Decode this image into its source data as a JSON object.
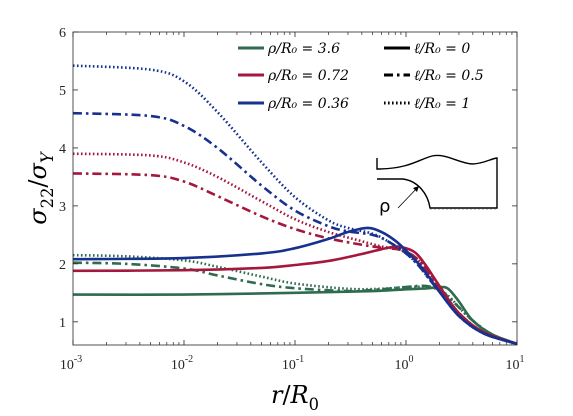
{
  "chart_data": {
    "type": "line",
    "xscale": "log",
    "xlim": [
      0.001,
      10
    ],
    "ylim": [
      0.6,
      6
    ],
    "grid": false,
    "legend_placement": "top-right",
    "x_ticks": [
      {
        "value": 0.001,
        "base": "10",
        "exp": "-3"
      },
      {
        "value": 0.01,
        "base": "10",
        "exp": "-2"
      },
      {
        "value": 0.1,
        "base": "10",
        "exp": "-1"
      },
      {
        "value": 1,
        "base": "10",
        "exp": "0"
      },
      {
        "value": 10,
        "base": "10",
        "exp": "1"
      }
    ],
    "y_ticks": [
      1,
      2,
      3,
      4,
      5,
      6
    ],
    "xlabel_parts": [
      {
        "t": "r",
        "i": true
      },
      {
        "t": "/",
        "i": false
      },
      {
        "t": "R",
        "i": true
      },
      {
        "t": "0",
        "i": false,
        "sub": true
      }
    ],
    "ylabel_parts": [
      {
        "t": "σ",
        "i": true
      },
      {
        "t": "22",
        "i": false,
        "sub": true
      },
      {
        "t": "/",
        "i": false
      },
      {
        "t": "σ",
        "i": true
      },
      {
        "t": "Y",
        "i": true,
        "sub": true
      }
    ],
    "colors": {
      "green": "#2e6b4f",
      "red": "#a3183c",
      "blue": "#17318f"
    },
    "legend_colors": [
      {
        "label": "ρ/R₀ = 3.6",
        "color": "#2e6b4f"
      },
      {
        "label": "ρ/R₀ = 0.72",
        "color": "#a3183c"
      },
      {
        "label": "ρ/R₀ = 0.36",
        "color": "#17318f"
      }
    ],
    "legend_styles": [
      {
        "label": "ℓ/R₀ = 0",
        "dash": "solid"
      },
      {
        "label": "ℓ/R₀ = 0.5",
        "dash": "dashdot"
      },
      {
        "label": "ℓ/R₀ = 1",
        "dash": "dotted"
      }
    ],
    "inset_label": "ρ",
    "series": [
      {
        "color": "green",
        "dash": "solid",
        "x": [
          0.001,
          0.01,
          0.1,
          0.3,
          0.5,
          0.8,
          1.0,
          1.3,
          1.6,
          2.0,
          2.4,
          3.0,
          4.0,
          6.0,
          10.0
        ],
        "y": [
          1.47,
          1.47,
          1.5,
          1.52,
          1.53,
          1.55,
          1.56,
          1.57,
          1.58,
          1.6,
          1.57,
          1.35,
          1.02,
          0.78,
          0.62
        ]
      },
      {
        "color": "green",
        "dash": "dashdot",
        "x": [
          0.001,
          0.003,
          0.01,
          0.02,
          0.05,
          0.1,
          0.3,
          0.5,
          1.0,
          1.5,
          2.0,
          2.5,
          3.0,
          4.0,
          6.0,
          10.0
        ],
        "y": [
          2.02,
          2.0,
          1.92,
          1.8,
          1.65,
          1.58,
          1.53,
          1.55,
          1.6,
          1.62,
          1.55,
          1.4,
          1.25,
          1.02,
          0.78,
          0.62
        ]
      },
      {
        "color": "green",
        "dash": "dotted",
        "x": [
          0.001,
          0.003,
          0.01,
          0.02,
          0.05,
          0.1,
          0.3,
          0.6,
          1.0,
          1.5,
          2.0,
          2.5,
          3.0,
          4.0,
          6.0,
          10.0
        ],
        "y": [
          2.15,
          2.13,
          2.06,
          1.95,
          1.78,
          1.66,
          1.57,
          1.57,
          1.6,
          1.6,
          1.55,
          1.42,
          1.25,
          1.02,
          0.78,
          0.62
        ]
      },
      {
        "color": "red",
        "dash": "solid",
        "x": [
          0.001,
          0.01,
          0.05,
          0.1,
          0.2,
          0.4,
          0.7,
          0.9,
          1.2,
          1.5,
          2.0,
          3.0,
          5.0,
          10.0
        ],
        "y": [
          1.88,
          1.89,
          1.93,
          1.98,
          2.05,
          2.17,
          2.28,
          2.29,
          2.2,
          1.98,
          1.62,
          1.15,
          0.82,
          0.62
        ]
      },
      {
        "color": "red",
        "dash": "dashdot",
        "x": [
          0.001,
          0.005,
          0.01,
          0.02,
          0.05,
          0.1,
          0.2,
          0.4,
          0.6,
          0.9,
          1.2,
          1.5,
          2.0,
          3.0,
          5.0,
          10.0
        ],
        "y": [
          3.56,
          3.53,
          3.42,
          3.17,
          2.82,
          2.6,
          2.44,
          2.33,
          2.28,
          2.24,
          2.12,
          1.92,
          1.58,
          1.15,
          0.82,
          0.62
        ]
      },
      {
        "color": "red",
        "dash": "dotted",
        "x": [
          0.001,
          0.005,
          0.01,
          0.02,
          0.05,
          0.1,
          0.2,
          0.4,
          0.6,
          0.9,
          1.2,
          1.5,
          2.0,
          3.0,
          5.0,
          10.0
        ],
        "y": [
          3.9,
          3.87,
          3.75,
          3.5,
          3.08,
          2.77,
          2.55,
          2.39,
          2.3,
          2.24,
          2.12,
          1.92,
          1.58,
          1.15,
          0.82,
          0.62
        ]
      },
      {
        "color": "blue",
        "dash": "solid",
        "x": [
          0.001,
          0.01,
          0.05,
          0.1,
          0.2,
          0.3,
          0.45,
          0.6,
          0.8,
          1.0,
          1.3,
          1.6,
          2.0,
          3.0,
          5.0,
          10.0
        ],
        "y": [
          2.08,
          2.1,
          2.18,
          2.27,
          2.43,
          2.55,
          2.62,
          2.55,
          2.4,
          2.23,
          2.0,
          1.78,
          1.52,
          1.1,
          0.8,
          0.62
        ]
      },
      {
        "color": "blue",
        "dash": "dashdot",
        "x": [
          0.001,
          0.005,
          0.01,
          0.02,
          0.05,
          0.1,
          0.2,
          0.3,
          0.5,
          0.7,
          1.0,
          1.3,
          1.6,
          2.0,
          3.0,
          5.0,
          10.0
        ],
        "y": [
          4.6,
          4.55,
          4.38,
          4.0,
          3.35,
          2.92,
          2.65,
          2.56,
          2.5,
          2.38,
          2.18,
          1.97,
          1.75,
          1.52,
          1.1,
          0.8,
          0.62
        ]
      },
      {
        "color": "blue",
        "dash": "dotted",
        "x": [
          0.001,
          0.005,
          0.01,
          0.02,
          0.05,
          0.1,
          0.2,
          0.3,
          0.5,
          0.7,
          1.0,
          1.3,
          1.6,
          2.0,
          3.0,
          5.0,
          10.0
        ],
        "y": [
          5.42,
          5.35,
          5.15,
          4.62,
          3.75,
          3.15,
          2.75,
          2.62,
          2.52,
          2.38,
          2.18,
          1.97,
          1.75,
          1.52,
          1.1,
          0.8,
          0.62
        ]
      }
    ]
  }
}
